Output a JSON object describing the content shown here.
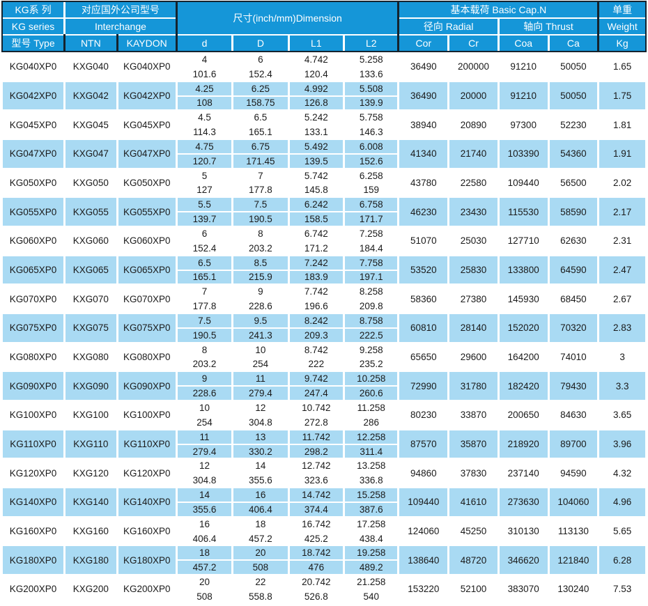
{
  "colors": {
    "header_blue": "#1596D8",
    "stripe_blue": "#A9DAF3",
    "border_dark": "#15232E",
    "text_dark": "#1A1A1A",
    "header_text": "#FFFFFF"
  },
  "header": {
    "kg_series_top": "KG系 列",
    "kg_series_mid": "KG series",
    "type_col": "型号 Type",
    "interchange_top": "对应国外公司型号",
    "interchange_mid": "Interchange",
    "interchange_cols": [
      "NTN",
      "KAYDON"
    ],
    "dimension_title": "尺寸(inch/mm)Dimension",
    "dim_cols": [
      "d",
      "D",
      "L1",
      "L2"
    ],
    "basic_cap_title": "基本载荷 Basic Cap.N",
    "radial": "径向 Radial",
    "thrust": "轴向 Thrust",
    "load_cols": [
      "Cor",
      "Cr",
      "Coa",
      "Ca"
    ],
    "weight_top": "单重",
    "weight_mid": "Weight",
    "weight_unit": "Kg"
  },
  "rows": [
    {
      "type": "KG040XP0",
      "ntn": "KXG040",
      "kaydon": "KG040XP0",
      "d": [
        "4",
        "101.6"
      ],
      "D": [
        "6",
        "152.4"
      ],
      "L1": [
        "4.742",
        "120.4"
      ],
      "L2": [
        "5.258",
        "133.6"
      ],
      "cor": "36490",
      "cr": "200000",
      "coa": "91210",
      "ca": "50050",
      "kg": "1.65"
    },
    {
      "type": "KG042XP0",
      "ntn": "KXG042",
      "kaydon": "KG042XP0",
      "d": [
        "4.25",
        "108"
      ],
      "D": [
        "6.25",
        "158.75"
      ],
      "L1": [
        "4.992",
        "126.8"
      ],
      "L2": [
        "5.508",
        "139.9"
      ],
      "cor": "36490",
      "cr": "20000",
      "coa": "91210",
      "ca": "50050",
      "kg": "1.75"
    },
    {
      "type": "KG045XP0",
      "ntn": "KXG045",
      "kaydon": "KG045XP0",
      "d": [
        "4.5",
        "114.3"
      ],
      "D": [
        "6.5",
        "165.1"
      ],
      "L1": [
        "5.242",
        "133.1"
      ],
      "L2": [
        "5.758",
        "146.3"
      ],
      "cor": "38940",
      "cr": "20890",
      "coa": "97300",
      "ca": "52230",
      "kg": "1.81"
    },
    {
      "type": "KG047XP0",
      "ntn": "KXG047",
      "kaydon": "KG047XP0",
      "d": [
        "4.75",
        "120.7"
      ],
      "D": [
        "6.75",
        "171.45"
      ],
      "L1": [
        "5.492",
        "139.5"
      ],
      "L2": [
        "6.008",
        "152.6"
      ],
      "cor": "41340",
      "cr": "21740",
      "coa": "103390",
      "ca": "54360",
      "kg": "1.91"
    },
    {
      "type": "KG050XP0",
      "ntn": "KXG050",
      "kaydon": "KG050XP0",
      "d": [
        "5",
        "127"
      ],
      "D": [
        "7",
        "177.8"
      ],
      "L1": [
        "5.742",
        "145.8"
      ],
      "L2": [
        "6.258",
        "159"
      ],
      "cor": "43780",
      "cr": "22580",
      "coa": "109440",
      "ca": "56500",
      "kg": "2.02"
    },
    {
      "type": "KG055XP0",
      "ntn": "KXG055",
      "kaydon": "KG055XP0",
      "d": [
        "5.5",
        "139.7"
      ],
      "D": [
        "7.5",
        "190.5"
      ],
      "L1": [
        "6.242",
        "158.5"
      ],
      "L2": [
        "6.758",
        "171.7"
      ],
      "cor": "46230",
      "cr": "23430",
      "coa": "115530",
      "ca": "58590",
      "kg": "2.17"
    },
    {
      "type": "KG060XP0",
      "ntn": "KXG060",
      "kaydon": "KG060XP0",
      "d": [
        "6",
        "152.4"
      ],
      "D": [
        "8",
        "203.2"
      ],
      "L1": [
        "6.742",
        "171.2"
      ],
      "L2": [
        "7.258",
        "184.4"
      ],
      "cor": "51070",
      "cr": "25030",
      "coa": "127710",
      "ca": "62630",
      "kg": "2.31"
    },
    {
      "type": "KG065XP0",
      "ntn": "KXG065",
      "kaydon": "KG065XP0",
      "d": [
        "6.5",
        "165.1"
      ],
      "D": [
        "8.5",
        "215.9"
      ],
      "L1": [
        "7.242",
        "183.9"
      ],
      "L2": [
        "7.758",
        "197.1"
      ],
      "cor": "53520",
      "cr": "25830",
      "coa": "133800",
      "ca": "64590",
      "kg": "2.47"
    },
    {
      "type": "KG070XP0",
      "ntn": "KXG070",
      "kaydon": "KG070XP0",
      "d": [
        "7",
        "177.8"
      ],
      "D": [
        "9",
        "228.6"
      ],
      "L1": [
        "7.742",
        "196.6"
      ],
      "L2": [
        "8.258",
        "209.8"
      ],
      "cor": "58360",
      "cr": "27380",
      "coa": "145930",
      "ca": "68450",
      "kg": "2.67"
    },
    {
      "type": "KG075XP0",
      "ntn": "KXG075",
      "kaydon": "KG075XP0",
      "d": [
        "7.5",
        "190.5"
      ],
      "D": [
        "9.5",
        "241.3"
      ],
      "L1": [
        "8.242",
        "209.3"
      ],
      "L2": [
        "8.758",
        "222.5"
      ],
      "cor": "60810",
      "cr": "28140",
      "coa": "152020",
      "ca": "70320",
      "kg": "2.83"
    },
    {
      "type": "KG080XP0",
      "ntn": "KXG080",
      "kaydon": "KG080XP0",
      "d": [
        "8",
        "203.2"
      ],
      "D": [
        "10",
        "254"
      ],
      "L1": [
        "8.742",
        "222"
      ],
      "L2": [
        "9.258",
        "235.2"
      ],
      "cor": "65650",
      "cr": "29600",
      "coa": "164200",
      "ca": "74010",
      "kg": "3"
    },
    {
      "type": "KG090XP0",
      "ntn": "KXG090",
      "kaydon": "KG090XP0",
      "d": [
        "9",
        "228.6"
      ],
      "D": [
        "11",
        "279.4"
      ],
      "L1": [
        "9.742",
        "247.4"
      ],
      "L2": [
        "10.258",
        "260.6"
      ],
      "cor": "72990",
      "cr": "31780",
      "coa": "182420",
      "ca": "79430",
      "kg": "3.3"
    },
    {
      "type": "KG100XP0",
      "ntn": "KXG100",
      "kaydon": "KG100XP0",
      "d": [
        "10",
        "254"
      ],
      "D": [
        "12",
        "304.8"
      ],
      "L1": [
        "10.742",
        "272.8"
      ],
      "L2": [
        "11.258",
        "286"
      ],
      "cor": "80230",
      "cr": "33870",
      "coa": "200650",
      "ca": "84630",
      "kg": "3.65"
    },
    {
      "type": "KG110XP0",
      "ntn": "KXG110",
      "kaydon": "KG110XP0",
      "d": [
        "11",
        "279.4"
      ],
      "D": [
        "13",
        "330.2"
      ],
      "L1": [
        "11.742",
        "298.2"
      ],
      "L2": [
        "12.258",
        "311.4"
      ],
      "cor": "87570",
      "cr": "35870",
      "coa": "218920",
      "ca": "89700",
      "kg": "3.96"
    },
    {
      "type": "KG120XP0",
      "ntn": "KXG120",
      "kaydon": "KG120XP0",
      "d": [
        "12",
        "304.8"
      ],
      "D": [
        "14",
        "355.6"
      ],
      "L1": [
        "12.742",
        "323.6"
      ],
      "L2": [
        "13.258",
        "336.8"
      ],
      "cor": "94860",
      "cr": "37830",
      "coa": "237140",
      "ca": "94590",
      "kg": "4.32"
    },
    {
      "type": "KG140XP0",
      "ntn": "KXG140",
      "kaydon": "KG140XP0",
      "d": [
        "14",
        "355.6"
      ],
      "D": [
        "16",
        "406.4"
      ],
      "L1": [
        "14.742",
        "374.4"
      ],
      "L2": [
        "15.258",
        "387.6"
      ],
      "cor": "109440",
      "cr": "41610",
      "coa": "273630",
      "ca": "104060",
      "kg": "4.96"
    },
    {
      "type": "KG160XP0",
      "ntn": "KXG160",
      "kaydon": "KG160XP0",
      "d": [
        "16",
        "406.4"
      ],
      "D": [
        "18",
        "457.2"
      ],
      "L1": [
        "16.742",
        "425.2"
      ],
      "L2": [
        "17.258",
        "438.4"
      ],
      "cor": "124060",
      "cr": "45250",
      "coa": "310130",
      "ca": "113130",
      "kg": "5.65"
    },
    {
      "type": "KG180XP0",
      "ntn": "KXG180",
      "kaydon": "KG180XP0",
      "d": [
        "18",
        "457.2"
      ],
      "D": [
        "20",
        "508"
      ],
      "L1": [
        "18.742",
        "476"
      ],
      "L2": [
        "19.258",
        "489.2"
      ],
      "cor": "138640",
      "cr": "48720",
      "coa": "346620",
      "ca": "121840",
      "kg": "6.28"
    },
    {
      "type": "KG200XP0",
      "ntn": "KXG200",
      "kaydon": "KG200XP0",
      "d": [
        "20",
        "508"
      ],
      "D": [
        "22",
        "558.8"
      ],
      "L1": [
        "20.742",
        "526.8"
      ],
      "L2": [
        "21.258",
        "540"
      ],
      "cor": "153220",
      "cr": "52100",
      "coa": "383070",
      "ca": "130240",
      "kg": "7.53"
    }
  ]
}
